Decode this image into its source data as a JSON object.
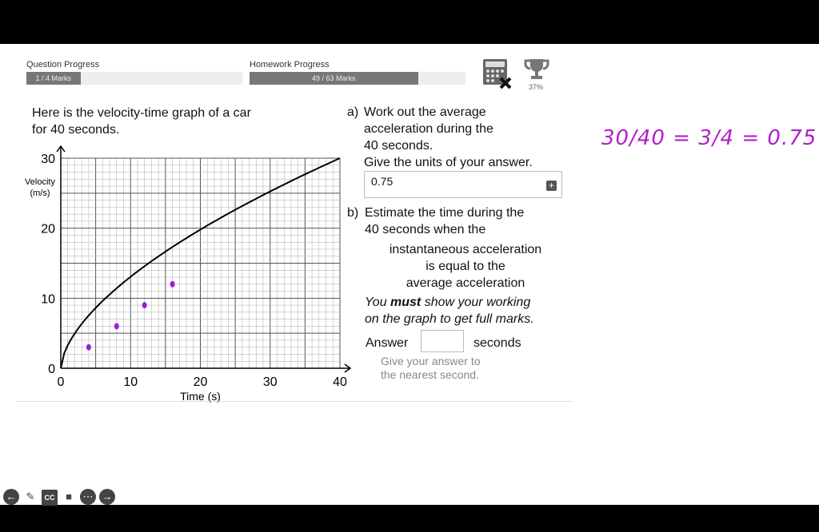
{
  "progress": {
    "question_label": "Question Progress",
    "question_value": "1 / 4 Marks",
    "question_fraction": 0.25,
    "homework_label": "Homework Progress",
    "homework_value": "49 / 63 Marks",
    "homework_fraction": 0.778,
    "trophy_percent": "37%"
  },
  "question": {
    "intro": [
      "Here is the velocity-time graph of a car",
      "for 40 seconds."
    ],
    "a_label": "a)",
    "a_text": [
      "Work out the average",
      "acceleration during the",
      "40 seconds.",
      "Give the units of your answer."
    ],
    "a_answer": "0.75",
    "b_label": "b)",
    "b_text": [
      "Estimate the time during the",
      "40 seconds when the",
      "instantaneous acceleration",
      "is equal to the",
      "average acceleration"
    ],
    "working_1": "You ",
    "working_bold": "must",
    "working_2": " show your working",
    "working_3": "on the graph to get full marks.",
    "answer_label": "Answer",
    "answer_value": "",
    "answer_unit": "seconds",
    "hint": [
      "Give your answer to",
      "the nearest second."
    ]
  },
  "chart_data": {
    "type": "line",
    "xlabel": "Time (s)",
    "ylabel": "Velocity (m/s)",
    "xlim": [
      0,
      40
    ],
    "ylim": [
      0,
      30
    ],
    "xticks": [
      0,
      10,
      20,
      30,
      40
    ],
    "yticks": [
      0,
      10,
      20,
      30
    ],
    "grid": true,
    "curve_points": [
      [
        0,
        0
      ],
      [
        5,
        7.5
      ],
      [
        10,
        13
      ],
      [
        15,
        16.5
      ],
      [
        20,
        19.5
      ],
      [
        25,
        22.5
      ],
      [
        30,
        25.3
      ],
      [
        35,
        27.8
      ],
      [
        40,
        30
      ]
    ],
    "annotation_points": [
      [
        4,
        3
      ],
      [
        8,
        6
      ],
      [
        12,
        9
      ],
      [
        16,
        12
      ]
    ],
    "annotation_color": "#9b1fd6"
  },
  "handwriting": {
    "text": "30/40 = 3/4 = 0.75",
    "color": "#b21fc9"
  },
  "toolbar": {
    "icons": [
      "back-icon",
      "pencil-icon",
      "cc-icon",
      "video-off-icon",
      "more-icon",
      "forward-icon"
    ]
  }
}
